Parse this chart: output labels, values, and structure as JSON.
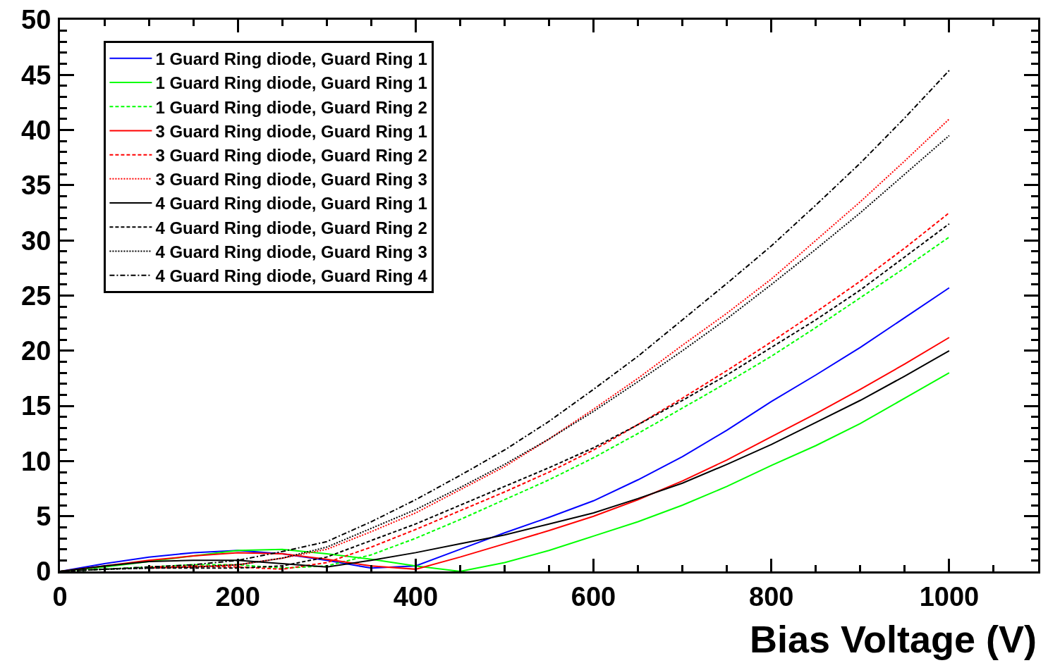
{
  "chart_data": {
    "type": "line",
    "xlabel": "Bias Voltage (V)",
    "x": [
      0,
      50,
      100,
      150,
      200,
      250,
      300,
      350,
      400,
      450,
      500,
      550,
      600,
      650,
      700,
      750,
      800,
      850,
      900,
      950,
      1000
    ],
    "xlim": [
      0,
      1100
    ],
    "xticks": [
      0,
      200,
      400,
      600,
      800,
      1000
    ],
    "ylim": [
      0,
      50
    ],
    "yticks": [
      0,
      5,
      10,
      15,
      20,
      25,
      30,
      35,
      40,
      45,
      50
    ],
    "grid": false,
    "legend": "top left",
    "marker": "none",
    "series": [
      {
        "name": "1 Guard Ring diode, Guard Ring 1",
        "color": "#0000ff",
        "line_style": "solid",
        "values": [
          0,
          0.7,
          1.3,
          1.7,
          1.9,
          1.6,
          1.0,
          0.3,
          0.5,
          2.0,
          3.5,
          4.9,
          6.4,
          8.3,
          10.4,
          12.8,
          15.4,
          17.8,
          20.3,
          23.0,
          25.7
        ]
      },
      {
        "name": "1 Guard Ring diode, Guard Ring 1",
        "color": "#00ff00",
        "line_style": "solid",
        "values": [
          0,
          0.4,
          0.9,
          1.4,
          1.9,
          2.0,
          1.6,
          1.1,
          0.5,
          0,
          0.8,
          1.9,
          3.2,
          4.5,
          6.0,
          7.7,
          9.6,
          11.4,
          13.4,
          15.7,
          18.0
        ]
      },
      {
        "name": "1 Guard Ring diode, Guard Ring 2",
        "color": "#00ff00",
        "line_style": "dashed",
        "values": [
          0,
          0.2,
          0.4,
          0.6,
          0.6,
          0.3,
          0.5,
          1.5,
          3.0,
          4.7,
          6.5,
          8.3,
          10.3,
          12.5,
          14.8,
          17.1,
          19.5,
          22.1,
          24.8,
          27.5,
          30.3
        ]
      },
      {
        "name": "3 Guard Ring diode, Guard Ring 1",
        "color": "#ff0000",
        "line_style": "solid",
        "values": [
          0,
          0.5,
          1.0,
          1.4,
          1.7,
          1.6,
          1.1,
          0.5,
          0.2,
          1.3,
          2.5,
          3.7,
          5.0,
          6.5,
          8.2,
          10.1,
          12.2,
          14.3,
          16.5,
          18.8,
          21.2
        ]
      },
      {
        "name": "3 Guard Ring diode, Guard Ring 2",
        "color": "#ff0000",
        "line_style": "dashed",
        "values": [
          null,
          null,
          0.4,
          0.5,
          0.4,
          0.2,
          0.8,
          2.2,
          3.8,
          5.5,
          7.2,
          9.0,
          11.0,
          13.3,
          15.7,
          18.2,
          20.8,
          23.5,
          26.3,
          29.3,
          32.5
        ]
      },
      {
        "name": "3 Guard Ring diode, Guard Ring 3",
        "color": "#ff0000",
        "line_style": "dotted",
        "values": [
          null,
          null,
          0.3,
          0.4,
          0.6,
          1.2,
          2.0,
          3.6,
          5.3,
          7.4,
          9.5,
          12.0,
          14.7,
          17.5,
          20.5,
          23.4,
          26.5,
          30.0,
          33.5,
          37.2,
          41.0
        ]
      },
      {
        "name": "4 Guard Ring diode, Guard Ring 1",
        "color": "#000000",
        "line_style": "solid",
        "values": [
          0,
          0.5,
          0.9,
          1.0,
          1.0,
          0.7,
          0.4,
          1.0,
          1.7,
          2.5,
          3.3,
          4.3,
          5.3,
          6.6,
          8.0,
          9.7,
          11.5,
          13.5,
          15.5,
          17.7,
          20.0
        ]
      },
      {
        "name": "4 Guard Ring diode, Guard Ring 2",
        "color": "#000000",
        "line_style": "dashed",
        "values": [
          0,
          0.2,
          0.3,
          0.3,
          0.3,
          0.5,
          1.3,
          2.8,
          4.3,
          6.0,
          7.7,
          9.4,
          11.2,
          13.3,
          15.5,
          17.8,
          20.3,
          22.8,
          25.5,
          28.5,
          31.5
        ]
      },
      {
        "name": "4 Guard Ring diode, Guard Ring 3",
        "color": "#000000",
        "line_style": "dotted",
        "values": [
          0,
          0.2,
          0.3,
          0.4,
          0.6,
          1.2,
          2.2,
          3.9,
          5.6,
          7.6,
          9.7,
          12.0,
          14.5,
          17.2,
          20.0,
          22.9,
          26.0,
          29.2,
          32.5,
          36.0,
          39.5
        ]
      },
      {
        "name": "4 Guard Ring diode, Guard Ring 4",
        "color": "#000000",
        "line_style": "dashdot",
        "values": [
          0,
          0.2,
          0.4,
          0.6,
          1.0,
          1.8,
          2.7,
          4.5,
          6.5,
          8.7,
          11.0,
          13.6,
          16.5,
          19.5,
          22.8,
          26.1,
          29.5,
          33.2,
          37.0,
          41.1,
          45.4
        ]
      }
    ]
  }
}
